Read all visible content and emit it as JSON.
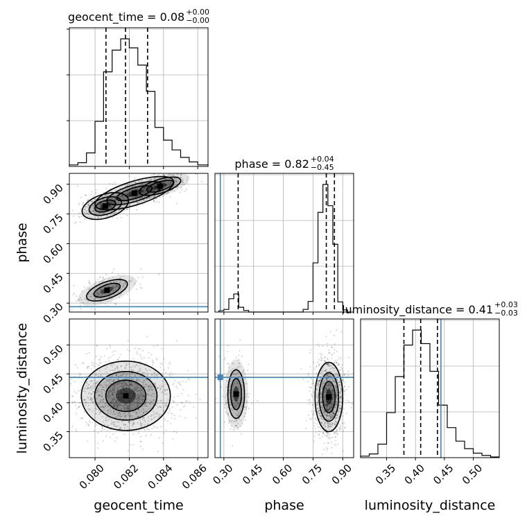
{
  "chart_data": {
    "type": "corner",
    "parameters": [
      "geocent_time",
      "phase",
      "luminosity_distance"
    ],
    "titles": [
      {
        "param": "geocent_time",
        "text": "geocent_time = 0.08",
        "upper": "+0.00",
        "lower": "−0.00"
      },
      {
        "param": "phase",
        "text": "phase = 0.82",
        "upper": "+0.04",
        "lower": "−0.45"
      },
      {
        "param": "luminosity_distance",
        "text": "luminosity_distance = 0.41",
        "upper": "+0.03",
        "lower": "−0.03"
      }
    ],
    "ranges": {
      "geocent_time": [
        0.0785,
        0.0866
      ],
      "phase": [
        0.255,
        0.955
      ],
      "luminosity_distance": [
        0.305,
        0.545
      ]
    },
    "tick_labels": {
      "geocent_time": [
        "0.080",
        "0.082",
        "0.084",
        "0.086"
      ],
      "phase": [
        "0.30",
        "0.45",
        "0.60",
        "0.75",
        "0.90"
      ],
      "luminosity_distance": [
        "0.35",
        "0.40",
        "0.45",
        "0.50"
      ]
    },
    "truth": {
      "phase": 0.282,
      "luminosity_distance": 0.444
    },
    "quantiles": {
      "geocent_time": [
        0.08064,
        0.08178,
        0.08307
      ],
      "phase": [
        0.372,
        0.817,
        0.858
      ],
      "luminosity_distance": [
        0.38,
        0.409,
        0.438
      ]
    },
    "histograms": {
      "geocent_time": {
        "edges": [
          0.0785,
          0.079,
          0.0795,
          0.08,
          0.0805,
          0.081,
          0.0815,
          0.082,
          0.0825,
          0.083,
          0.0835,
          0.084,
          0.0845,
          0.085,
          0.0855,
          0.086,
          0.0866
        ],
        "counts": [
          2,
          5,
          18,
          60,
          126,
          155,
          170,
          158,
          135,
          100,
          52,
          35,
          22,
          12,
          6,
          2
        ]
      },
      "phase": {
        "edges": [
          0.275,
          0.3,
          0.325,
          0.35,
          0.375,
          0.4,
          0.425,
          0.7,
          0.725,
          0.75,
          0.775,
          0.8,
          0.825,
          0.85,
          0.875,
          0.9,
          0.925
        ],
        "counts": [
          5,
          10,
          50,
          68,
          18,
          6,
          0,
          10,
          40,
          185,
          375,
          480,
          400,
          255,
          38,
          8
        ]
      },
      "luminosity_distance": {
        "edges": [
          0.305,
          0.32,
          0.335,
          0.35,
          0.365,
          0.38,
          0.395,
          0.41,
          0.425,
          0.44,
          0.455,
          0.47,
          0.485,
          0.5,
          0.515,
          0.53,
          0.545
        ],
        "counts": [
          2,
          5,
          18,
          60,
          108,
          150,
          170,
          152,
          115,
          70,
          40,
          22,
          12,
          6,
          3,
          1
        ]
      }
    },
    "blobs": {
      "phase_vs_geocent_time": [
        {
          "x": 0.0806,
          "y": 0.79,
          "sx": 0.0007,
          "sy": 0.03,
          "weight": 0.22,
          "angle": 0.3
        },
        {
          "x": 0.0823,
          "y": 0.855,
          "sx": 0.0012,
          "sy": 0.03,
          "weight": 0.45,
          "angle": 0.3
        },
        {
          "x": 0.0838,
          "y": 0.89,
          "sx": 0.0009,
          "sy": 0.025,
          "weight": 0.18,
          "angle": 0.3
        },
        {
          "x": 0.0807,
          "y": 0.365,
          "sx": 0.0009,
          "sy": 0.03,
          "weight": 0.15,
          "angle": 0.35
        }
      ],
      "luminosity_distance_vs_geocent_time": [
        {
          "x": 0.0818,
          "y": 0.412,
          "sx": 0.0013,
          "sy": 0.03,
          "weight": 1.0,
          "angle": 0.0
        }
      ],
      "luminosity_distance_vs_phase": [
        {
          "x": 0.83,
          "y": 0.41,
          "sx": 0.035,
          "sy": 0.03,
          "weight": 0.82,
          "angle": 0.0
        },
        {
          "x": 0.362,
          "y": 0.415,
          "sx": 0.03,
          "sy": 0.03,
          "weight": 0.18,
          "angle": 0.0
        }
      ]
    }
  }
}
